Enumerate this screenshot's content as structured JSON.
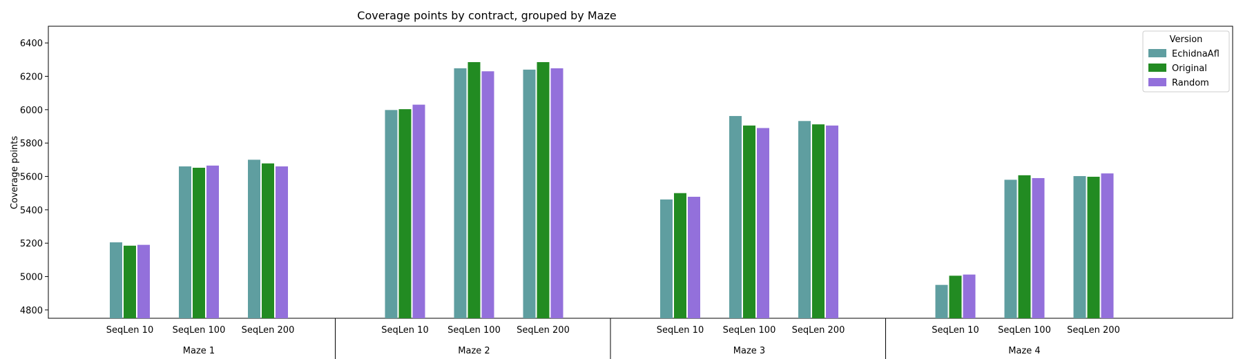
{
  "chart_data": {
    "type": "bar",
    "title": "Coverage points by contract, grouped by Maze",
    "ylabel": "Coverage points",
    "xlabel": "",
    "ylim": [
      4750,
      6500
    ],
    "yticks": [
      4800,
      5000,
      5200,
      5400,
      5600,
      5800,
      6000,
      6200,
      6400
    ],
    "groups": [
      "Maze 1",
      "Maze 2",
      "Maze 3",
      "Maze 4"
    ],
    "categories": [
      "SeqLen 10",
      "SeqLen 100",
      "SeqLen 200"
    ],
    "legend": {
      "title": "Version",
      "placement": "top-right"
    },
    "series": [
      {
        "name": "EchidnaAfl",
        "color": "#5f9ea0",
        "values": [
          [
            5205,
            5660,
            5700
          ],
          [
            5998,
            6248,
            6240
          ],
          [
            5462,
            5962,
            5932
          ],
          [
            4950,
            5580,
            5602
          ]
        ]
      },
      {
        "name": "Original",
        "color": "#228b22",
        "values": [
          [
            5185,
            5652,
            5678
          ],
          [
            6003,
            6285,
            6285
          ],
          [
            5500,
            5905,
            5912
          ],
          [
            5005,
            5607,
            5598
          ]
        ]
      },
      {
        "name": "Random",
        "color": "#9370db",
        "values": [
          [
            5190,
            5665,
            5660
          ],
          [
            6030,
            6230,
            6248
          ],
          [
            5478,
            5890,
            5905
          ],
          [
            5012,
            5590,
            5618
          ]
        ]
      }
    ],
    "grid": false
  }
}
